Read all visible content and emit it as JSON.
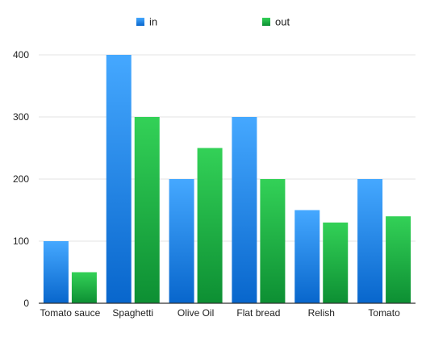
{
  "chart_data": {
    "type": "bar",
    "categories": [
      "Tomato sauce",
      "Spaghetti",
      "Olive Oil",
      "Flat bread",
      "Relish",
      "Tomato"
    ],
    "series": [
      {
        "name": "in",
        "values": [
          100,
          400,
          200,
          300,
          150,
          200
        ],
        "color": "#2e86e8"
      },
      {
        "name": "out",
        "values": [
          50,
          300,
          250,
          200,
          130,
          140
        ],
        "color": "#22b14c"
      }
    ],
    "yticks": [
      0,
      100,
      200,
      300,
      400
    ],
    "ylim": [
      0,
      400
    ],
    "grid": true,
    "legend": "top-center"
  }
}
